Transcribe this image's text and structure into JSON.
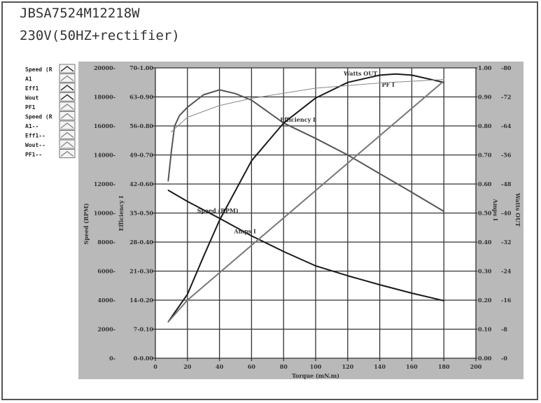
{
  "header": {
    "model": "JBSA7524M12218W",
    "supply": "230V(50HZ+rectifier)"
  },
  "legend": [
    "Speed (R",
    "A1",
    "Eff1",
    "Wout",
    "PF1",
    "Speed (R",
    "A1--",
    "Eff1--",
    "Wout--",
    "PF1--"
  ],
  "colors": {
    "panel": "#b9b9b9",
    "plot": "#ffffff",
    "grid": "#333333",
    "dark_series": "#1a1a1a",
    "light_series": "#777777"
  },
  "chart_data": {
    "type": "line",
    "title": "",
    "xlabel": "Torque (mN.m)",
    "xlim": [
      0,
      200
    ],
    "xticks": [
      0,
      20,
      40,
      60,
      80,
      100,
      120,
      140,
      160,
      180,
      200
    ],
    "grid": true,
    "legend_placement": "left",
    "axes": {
      "speed": {
        "label": "Speed (RPM)",
        "range": [
          0,
          20000
        ],
        "ticks": [
          "0-",
          "2000-",
          "4000-",
          "6000-",
          "8000-",
          "10000-",
          "12000-",
          "14000-",
          "16000-",
          "18000-",
          "20000-"
        ]
      },
      "efficiency": {
        "label": "Efficiency I",
        "range": [
          0,
          70
        ],
        "ticks": [
          "0-0.00",
          "7-0.10",
          "14-0.20",
          "21-0.30",
          "28-0.40",
          "35-0.50",
          "42-0.60",
          "49-0.70",
          "56-0.80",
          "63-0.90",
          "70-1.00"
        ]
      },
      "amps": {
        "label": "Amps I",
        "range": [
          0,
          1
        ],
        "ticks": [
          "0.00",
          "0.10",
          "0.20",
          "0.30",
          "0.40",
          "0.50",
          "0.60",
          "0.70",
          "0.80",
          "0.90",
          "1.00"
        ]
      },
      "watts": {
        "label": "Watts OUT",
        "range": [
          0,
          80
        ],
        "ticks": [
          "0",
          "8",
          "16",
          "24",
          "32",
          "40",
          "48",
          "56",
          "64",
          "72",
          "80"
        ]
      }
    },
    "series": [
      {
        "name": "Speed (RPM)",
        "axis": "speed",
        "color": "#1a1a1a",
        "x": [
          8,
          20,
          40,
          60,
          80,
          100,
          120,
          140,
          160,
          180
        ],
        "y": [
          11570,
          10800,
          9640,
          8430,
          7350,
          6360,
          5680,
          5060,
          4480,
          3960
        ]
      },
      {
        "name": "Efficiency I",
        "axis": "efficiency",
        "color": "#555555",
        "x": [
          8,
          10,
          12,
          15,
          20,
          30,
          40,
          50,
          60,
          80,
          100,
          120,
          140,
          160,
          180
        ],
        "y": [
          42.7,
          50,
          56,
          58.5,
          60.5,
          63.5,
          64.7,
          63.8,
          62.2,
          56.7,
          53,
          49,
          44.5,
          40,
          35.4
        ]
      },
      {
        "name": "Watts OUT",
        "axis": "watts",
        "color": "#1a1a1a",
        "x": [
          8,
          20,
          30,
          40,
          60,
          80,
          100,
          120,
          140,
          150,
          160,
          180
        ],
        "y": [
          10,
          17.6,
          28,
          38,
          54.4,
          64.8,
          71.7,
          76,
          78,
          78.3,
          78,
          76
        ]
      },
      {
        "name": "Amps I",
        "axis": "amps",
        "color": "#777777",
        "x": [
          8,
          20,
          180
        ],
        "y": [
          0.125,
          0.2,
          0.955
        ]
      },
      {
        "name": "PF I",
        "axis": "amps",
        "color": "#888888",
        "x": [
          10,
          20,
          40,
          60,
          100,
          140,
          180
        ],
        "y": [
          0.78,
          0.83,
          0.87,
          0.895,
          0.93,
          0.948,
          0.96
        ]
      }
    ],
    "annotations": [
      "Speed (RPM)",
      "Efficiency I",
      "Watts OUT",
      "PF I",
      "Amps I"
    ]
  }
}
